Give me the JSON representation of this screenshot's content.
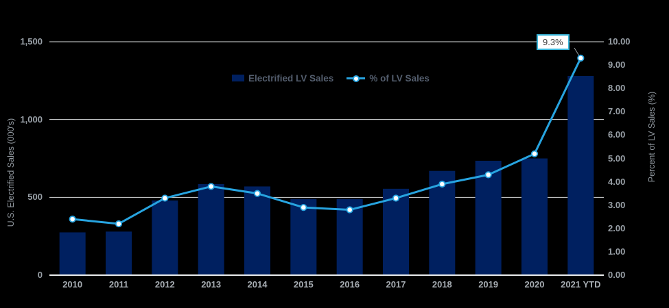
{
  "chart_data": {
    "type": "bar",
    "subtype": "bar+line combo, dual axis",
    "categories": [
      "2010",
      "2011",
      "2012",
      "2013",
      "2014",
      "2015",
      "2016",
      "2017",
      "2018",
      "2019",
      "2020",
      "2021 YTD"
    ],
    "series": [
      {
        "name": "Electrified LV Sales",
        "type": "bar",
        "axis": "left",
        "values": [
          275,
          280,
          480,
          585,
          570,
          490,
          490,
          555,
          670,
          735,
          750,
          1280
        ]
      },
      {
        "name": "% of LV Sales",
        "type": "line",
        "axis": "right",
        "values": [
          2.4,
          2.2,
          3.3,
          3.8,
          3.5,
          2.9,
          2.8,
          3.3,
          3.9,
          4.3,
          5.2,
          9.3
        ]
      }
    ],
    "left_axis": {
      "title": "U.S. Electrified Sales (000's)",
      "ylim": [
        0,
        1500
      ],
      "ticks": [
        {
          "label": "0",
          "value": 0
        },
        {
          "label": "500",
          "value": 500
        },
        {
          "label": "1,000",
          "value": 1000
        },
        {
          "label": "1,500",
          "value": 1500
        }
      ]
    },
    "right_axis": {
      "title": "Percent of LV Sales (%)",
      "ylim": [
        0,
        10
      ],
      "ticks": [
        {
          "label": "0.00",
          "value": 0
        },
        {
          "label": "1.00",
          "value": 1
        },
        {
          "label": "2.00",
          "value": 2
        },
        {
          "label": "3.00",
          "value": 3
        },
        {
          "label": "4.00",
          "value": 4
        },
        {
          "label": "5.00",
          "value": 5
        },
        {
          "label": "6.00",
          "value": 6
        },
        {
          "label": "7.00",
          "value": 7
        },
        {
          "label": "8.00",
          "value": 8
        },
        {
          "label": "9.00",
          "value": 9
        },
        {
          "label": "10.00",
          "value": 10
        }
      ]
    },
    "annotation": {
      "text": "9.3%",
      "series": "% of LV Sales",
      "category": "2021 YTD"
    },
    "legend_position": "top-center",
    "grid": true
  },
  "colors": {
    "background": "#000000",
    "bar": "#002060",
    "line": "#27a4e0",
    "marker_fill": "#ffffff",
    "grid": "#d9dcdd",
    "axis_line": "#eceeef",
    "leader_line": "#9aa0a3",
    "callout_border": "#3bb6da",
    "callout_text": "#3a3a3a"
  }
}
